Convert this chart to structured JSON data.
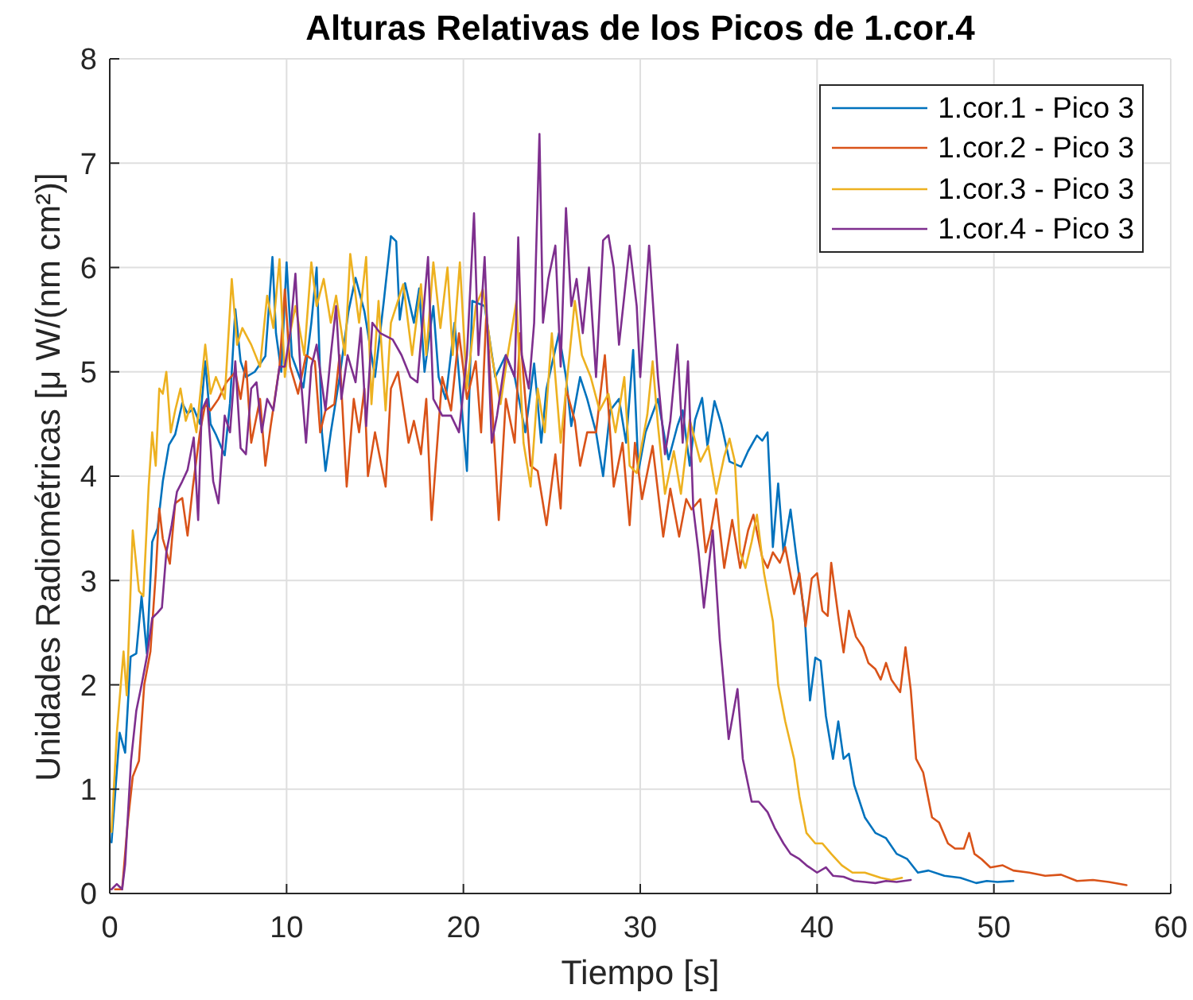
{
  "chart_data": {
    "type": "line",
    "title": "Alturas Relativas de los Picos de 1.cor.4",
    "xlabel": "Tiempo [s]",
    "ylabel": "Unidades Radiométricas [μ W/(nm cm²)]",
    "xlim": [
      0,
      60
    ],
    "xticks": [
      0,
      10,
      20,
      30,
      40,
      50,
      60
    ],
    "ylim": [
      0,
      8
    ],
    "yticks": [
      0,
      1,
      2,
      3,
      4,
      5,
      6,
      7,
      8
    ],
    "grid": true,
    "legend": "top right",
    "series": [
      {
        "name": "1.cor.1 - Pico 3",
        "color": "#0072bd",
        "x": [
          0.1,
          0.56,
          0.87,
          1.18,
          1.5,
          1.8,
          2.1,
          2.4,
          2.7,
          3.0,
          3.35,
          3.7,
          4.1,
          4.4,
          4.75,
          5.1,
          5.4,
          5.7,
          6.0,
          6.5,
          6.8,
          7.1,
          7.4,
          7.7,
          8.2,
          8.8,
          9.2,
          9.4,
          9.7,
          10.0,
          10.3,
          10.95,
          11.4,
          11.7,
          12.0,
          12.2,
          12.5,
          13.0,
          13.5,
          13.9,
          14.4,
          15.0,
          15.5,
          15.9,
          16.2,
          16.4,
          16.7,
          17.2,
          17.5,
          17.8,
          18.3,
          18.6,
          19.0,
          19.5,
          20.2,
          20.5,
          21.2,
          21.8,
          22.4,
          22.9,
          23.5,
          24.0,
          24.4,
          24.7,
          25.4,
          25.8,
          26.1,
          26.6,
          27.0,
          27.5,
          27.9,
          28.3,
          28.8,
          29.2,
          29.6,
          29.9,
          30.3,
          31.0,
          31.6,
          32.1,
          32.4,
          32.8,
          33.1,
          33.5,
          33.8,
          34.2,
          34.6,
          35.05,
          35.7,
          36.1,
          36.6,
          36.9,
          37.2,
          37.5,
          37.8,
          38.1,
          38.5,
          38.8,
          39.3,
          39.6,
          39.9,
          40.2,
          40.5,
          40.9,
          41.2,
          41.5,
          41.8,
          42.1,
          42.7,
          43.3,
          43.9,
          44.5,
          45.1,
          45.7,
          46.3,
          47.2,
          48.1,
          49.0,
          49.6,
          50.2,
          51.1
        ],
        "values": [
          0.49,
          1.54,
          1.35,
          2.27,
          2.3,
          2.85,
          2.3,
          3.37,
          3.5,
          3.95,
          4.3,
          4.4,
          4.7,
          4.6,
          4.65,
          4.5,
          5.1,
          4.5,
          4.4,
          4.2,
          4.7,
          5.6,
          5.1,
          4.95,
          5.0,
          5.15,
          6.1,
          5.37,
          5.0,
          6.05,
          5.15,
          4.85,
          5.47,
          6.0,
          4.42,
          4.05,
          4.42,
          4.95,
          5.58,
          5.9,
          5.58,
          4.95,
          5.68,
          6.3,
          6.25,
          5.5,
          5.85,
          5.47,
          5.8,
          5.0,
          5.63,
          4.95,
          4.74,
          5.47,
          4.05,
          5.68,
          5.63,
          4.95,
          5.16,
          4.95,
          4.42,
          5.08,
          4.32,
          4.84,
          5.37,
          4.95,
          4.48,
          4.95,
          4.74,
          4.42,
          4.0,
          4.63,
          4.74,
          4.32,
          5.21,
          4.05,
          4.42,
          4.74,
          4.16,
          4.48,
          4.63,
          4.1,
          4.54,
          4.75,
          4.29,
          4.72,
          4.49,
          4.14,
          4.09,
          4.24,
          4.39,
          4.34,
          4.42,
          3.32,
          3.93,
          3.27,
          3.68,
          3.27,
          2.66,
          1.85,
          2.26,
          2.23,
          1.7,
          1.29,
          1.65,
          1.29,
          1.34,
          1.04,
          0.73,
          0.58,
          0.53,
          0.38,
          0.33,
          0.2,
          0.22,
          0.17,
          0.15,
          0.1,
          0.12,
          0.11,
          0.12
        ]
      },
      {
        "name": "1.cor.2 - Pico 3",
        "color": "#d95319",
        "x": [
          0.3,
          0.7,
          1.0,
          1.3,
          1.65,
          1.95,
          2.3,
          2.6,
          2.8,
          3.0,
          3.4,
          3.7,
          4.1,
          4.4,
          4.7,
          5.1,
          5.4,
          5.7,
          6.15,
          6.6,
          7.1,
          7.4,
          7.7,
          8.0,
          8.5,
          8.8,
          9.1,
          9.6,
          9.9,
          10.2,
          10.65,
          11.1,
          11.6,
          11.9,
          12.2,
          12.7,
          13.0,
          13.4,
          13.8,
          14.1,
          14.4,
          14.6,
          15.0,
          15.6,
          15.9,
          16.3,
          16.9,
          17.2,
          17.6,
          17.9,
          18.2,
          18.8,
          19.3,
          19.75,
          20.2,
          20.7,
          21.0,
          21.3,
          21.6,
          22.0,
          22.4,
          22.9,
          23.2,
          23.5,
          23.8,
          24.2,
          24.7,
          25.2,
          25.5,
          25.8,
          26.3,
          26.6,
          27.0,
          27.5,
          28.0,
          28.5,
          29.0,
          29.4,
          29.7,
          30.1,
          30.7,
          31.3,
          31.7,
          32.2,
          32.6,
          32.9,
          33.4,
          33.7,
          34.0,
          34.3,
          34.75,
          35.2,
          35.65,
          36.1,
          36.4,
          36.9,
          37.2,
          37.5,
          37.9,
          38.2,
          38.7,
          39.0,
          39.35,
          39.7,
          40.0,
          40.3,
          40.6,
          40.8,
          41.2,
          41.5,
          41.8,
          42.2,
          42.6,
          42.9,
          43.3,
          43.6,
          43.9,
          44.2,
          44.7,
          45.0,
          45.3,
          45.6,
          46.0,
          46.5,
          46.9,
          47.4,
          47.8,
          48.3,
          48.6,
          48.9,
          49.3,
          49.8,
          50.5,
          51.1,
          52.0,
          52.9,
          53.8,
          54.7,
          55.6,
          56.5,
          57.5
        ],
        "values": [
          0.04,
          0.04,
          0.65,
          1.12,
          1.27,
          2.0,
          2.32,
          3.06,
          3.69,
          3.4,
          3.16,
          3.74,
          3.79,
          3.43,
          3.9,
          4.42,
          4.69,
          4.63,
          4.74,
          4.9,
          5.0,
          4.74,
          5.1,
          4.32,
          4.74,
          4.1,
          4.48,
          5.05,
          5.79,
          5.05,
          4.79,
          5.16,
          5.1,
          4.42,
          4.63,
          4.69,
          5.16,
          3.9,
          4.74,
          4.42,
          4.84,
          4.0,
          4.42,
          3.9,
          4.84,
          5.0,
          4.32,
          4.53,
          4.21,
          4.74,
          3.58,
          4.95,
          4.63,
          5.37,
          4.74,
          5.1,
          4.42,
          5.58,
          4.74,
          3.58,
          4.74,
          4.32,
          5.37,
          4.74,
          4.1,
          4.05,
          3.53,
          4.21,
          3.69,
          4.84,
          4.53,
          4.1,
          4.42,
          4.42,
          5.16,
          3.9,
          4.32,
          3.53,
          4.32,
          3.78,
          4.29,
          3.42,
          3.88,
          3.42,
          3.78,
          3.68,
          3.78,
          3.27,
          3.48,
          3.78,
          3.12,
          3.58,
          3.12,
          3.48,
          3.63,
          3.22,
          3.12,
          3.27,
          3.17,
          3.32,
          2.87,
          3.07,
          2.56,
          3.02,
          3.07,
          2.71,
          2.66,
          3.17,
          2.66,
          2.31,
          2.71,
          2.46,
          2.36,
          2.21,
          2.15,
          2.05,
          2.21,
          2.05,
          1.93,
          2.36,
          1.95,
          1.29,
          1.16,
          0.73,
          0.68,
          0.48,
          0.43,
          0.43,
          0.58,
          0.38,
          0.33,
          0.25,
          0.27,
          0.22,
          0.2,
          0.17,
          0.18,
          0.12,
          0.13,
          0.11,
          0.08
        ]
      },
      {
        "name": "1.cor.3 - Pico 3",
        "color": "#edb120",
        "x": [
          0.1,
          0.4,
          0.78,
          0.96,
          1.3,
          1.65,
          1.9,
          2.2,
          2.4,
          2.6,
          2.8,
          3.0,
          3.2,
          3.45,
          3.7,
          4.0,
          4.3,
          4.6,
          4.9,
          5.4,
          5.7,
          6.0,
          6.5,
          6.9,
          7.2,
          7.5,
          8.0,
          8.5,
          8.9,
          9.25,
          9.6,
          9.9,
          10.2,
          10.5,
          11.0,
          11.4,
          11.7,
          12.1,
          12.5,
          12.8,
          13.3,
          13.6,
          14.1,
          14.5,
          14.8,
          15.2,
          15.6,
          15.9,
          16.6,
          17.1,
          17.6,
          17.9,
          18.3,
          18.7,
          19.1,
          19.4,
          19.8,
          20.2,
          20.7,
          21.1,
          21.6,
          22.1,
          22.5,
          23.0,
          23.4,
          23.8,
          24.2,
          24.6,
          25.0,
          25.5,
          26.0,
          26.3,
          26.7,
          27.2,
          27.7,
          28.2,
          28.6,
          29.1,
          29.4,
          29.8,
          30.4,
          30.7,
          31.0,
          31.4,
          31.9,
          32.3,
          32.8,
          33.4,
          33.85,
          34.3,
          34.75,
          35.05,
          35.35,
          35.65,
          35.95,
          36.3,
          36.6,
          37.0,
          37.5,
          37.8,
          38.2,
          38.7,
          39.0,
          39.4,
          39.9,
          40.3,
          40.8,
          41.4,
          42.0,
          42.7,
          43.6,
          44.2,
          44.8
        ],
        "values": [
          0.59,
          1.54,
          2.32,
          1.9,
          3.48,
          2.9,
          2.85,
          3.9,
          4.42,
          4.1,
          4.84,
          4.79,
          5.0,
          4.42,
          4.63,
          4.84,
          4.53,
          4.69,
          4.42,
          5.26,
          4.79,
          4.95,
          4.74,
          5.89,
          5.26,
          5.42,
          5.26,
          5.05,
          5.73,
          5.42,
          6.08,
          4.95,
          5.37,
          5.63,
          5.16,
          6.05,
          5.63,
          5.89,
          5.47,
          5.73,
          5.16,
          6.13,
          5.47,
          6.1,
          4.69,
          5.68,
          4.63,
          5.47,
          5.84,
          5.16,
          5.84,
          5.16,
          6.05,
          5.42,
          6.0,
          5.16,
          6.05,
          4.84,
          5.63,
          5.79,
          5.16,
          4.69,
          5.16,
          5.68,
          4.32,
          3.9,
          4.84,
          4.42,
          5.37,
          4.32,
          5.16,
          5.68,
          5.16,
          4.95,
          4.63,
          4.79,
          4.42,
          4.95,
          4.1,
          4.03,
          4.59,
          5.1,
          4.49,
          3.83,
          4.24,
          3.83,
          4.54,
          4.14,
          4.29,
          3.83,
          4.19,
          4.36,
          4.14,
          3.27,
          3.12,
          3.37,
          3.63,
          3.07,
          2.61,
          2.0,
          1.65,
          1.29,
          0.93,
          0.58,
          0.48,
          0.48,
          0.38,
          0.27,
          0.2,
          0.2,
          0.15,
          0.13,
          0.15
        ]
      },
      {
        "name": "1.cor.4 - Pico 3",
        "color": "#7e2f8e",
        "x": [
          0.1,
          0.4,
          0.7,
          0.87,
          1.2,
          1.5,
          1.8,
          2.1,
          2.4,
          2.7,
          2.95,
          3.2,
          3.5,
          3.8,
          4.1,
          4.4,
          4.75,
          5.0,
          5.2,
          5.5,
          5.85,
          6.15,
          6.5,
          6.8,
          7.1,
          7.4,
          7.7,
          8.0,
          8.3,
          8.6,
          8.9,
          9.25,
          9.6,
          9.9,
          10.2,
          10.5,
          10.8,
          11.1,
          11.4,
          11.7,
          12.2,
          12.5,
          12.8,
          13.1,
          13.45,
          13.9,
          14.2,
          14.5,
          14.85,
          15.3,
          16.0,
          16.5,
          17.0,
          17.4,
          18.0,
          18.3,
          18.8,
          19.3,
          19.75,
          20.2,
          20.6,
          20.85,
          21.2,
          21.6,
          21.9,
          22.4,
          22.9,
          23.1,
          23.3,
          23.7,
          24.0,
          24.3,
          24.5,
          24.8,
          25.2,
          25.5,
          25.8,
          26.1,
          26.4,
          26.75,
          27.1,
          27.5,
          27.9,
          28.2,
          28.5,
          28.8,
          29.1,
          29.4,
          29.8,
          30.0,
          30.5,
          31.0,
          31.4,
          31.7,
          32.1,
          32.4,
          32.7,
          33.0,
          33.3,
          33.6,
          34.1,
          34.5,
          35.0,
          35.5,
          35.8,
          36.3,
          36.7,
          37.2,
          37.6,
          38.1,
          38.5,
          39.0,
          39.4,
          40.0,
          40.5,
          40.9,
          41.5,
          42.1,
          42.7,
          43.3,
          43.9,
          44.5,
          45.3
        ],
        "values": [
          0.04,
          0.09,
          0.04,
          0.28,
          1.27,
          1.75,
          2.0,
          2.27,
          2.64,
          2.69,
          2.74,
          3.27,
          3.53,
          3.85,
          3.95,
          4.06,
          4.37,
          3.58,
          4.63,
          4.74,
          3.95,
          3.74,
          4.58,
          4.42,
          5.1,
          4.27,
          4.21,
          4.84,
          4.9,
          4.42,
          4.74,
          4.63,
          5.05,
          5.05,
          5.37,
          5.94,
          4.95,
          4.32,
          5.05,
          5.26,
          4.63,
          5.16,
          5.63,
          4.74,
          5.16,
          4.9,
          5.42,
          4.48,
          5.47,
          5.37,
          5.31,
          5.16,
          4.95,
          4.9,
          6.1,
          4.74,
          4.58,
          4.58,
          4.42,
          5.16,
          6.52,
          5.16,
          6.1,
          4.32,
          4.58,
          5.16,
          4.95,
          6.29,
          5.16,
          4.84,
          5.47,
          7.28,
          5.47,
          5.89,
          6.21,
          5.05,
          6.57,
          5.63,
          5.89,
          5.37,
          6.0,
          4.95,
          6.26,
          6.31,
          6.0,
          5.26,
          5.73,
          6.21,
          5.63,
          4.95,
          6.21,
          4.95,
          4.21,
          4.53,
          5.26,
          4.32,
          5.1,
          3.69,
          3.27,
          2.74,
          3.48,
          2.43,
          1.48,
          1.96,
          1.29,
          0.88,
          0.88,
          0.78,
          0.63,
          0.48,
          0.38,
          0.33,
          0.27,
          0.2,
          0.25,
          0.17,
          0.16,
          0.12,
          0.11,
          0.1,
          0.12,
          0.11,
          0.13
        ]
      }
    ]
  }
}
